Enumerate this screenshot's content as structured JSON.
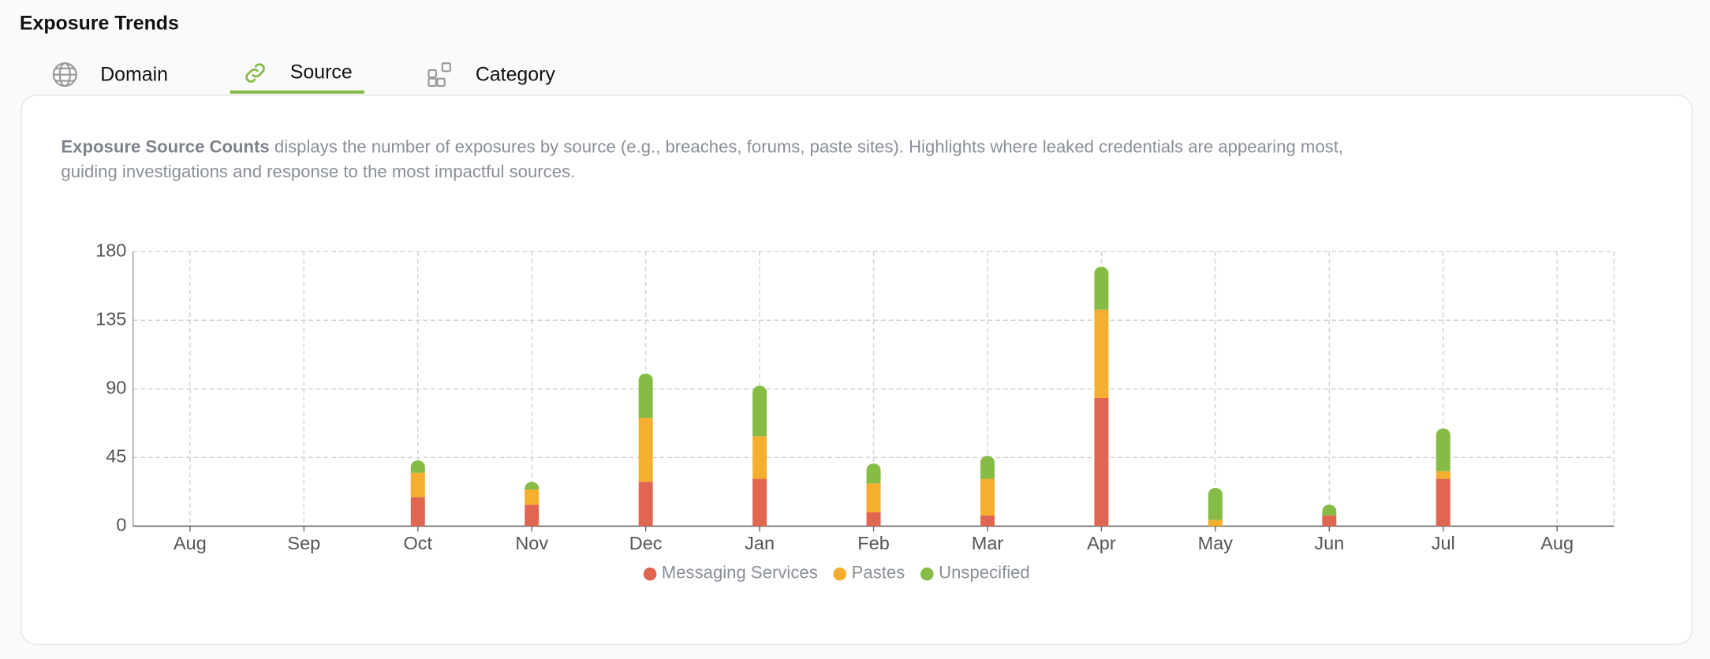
{
  "header": {
    "title": "Exposure Trends"
  },
  "tabs": [
    "Domain",
    "Source",
    "Category"
  ],
  "description": {
    "lead": "Exposure Source Counts",
    "text": " displays the number of exposures by source (e.g., breaches, forums, paste sites). Highlights where leaked credentials are appearing most, guiding investigations and response to the most impactful sources."
  },
  "chart_data": {
    "type": "stacked_bar",
    "categories": [
      "Aug",
      "Sep",
      "Oct",
      "Nov",
      "Dec",
      "Jan",
      "Feb",
      "Mar",
      "Apr",
      "May",
      "Jun",
      "Jul",
      "Aug"
    ],
    "series": [
      {
        "name": "Messaging Services",
        "color": "#e06651",
        "values": [
          0,
          0,
          19,
          14,
          29,
          31,
          9,
          7,
          84,
          0,
          7,
          31,
          0
        ]
      },
      {
        "name": "Pastes",
        "color": "#f5ae2e",
        "values": [
          0,
          0,
          16,
          10,
          42,
          28,
          19,
          24,
          58,
          4,
          0,
          5,
          0
        ]
      },
      {
        "name": "Unspecified",
        "color": "#86bc45",
        "values": [
          0,
          0,
          8,
          5,
          29,
          33,
          13,
          15,
          28,
          21,
          7,
          28,
          0
        ]
      }
    ],
    "ylim": [
      0,
      180
    ],
    "yticks": [
      0,
      45,
      90,
      135,
      180
    ],
    "grid": true
  }
}
